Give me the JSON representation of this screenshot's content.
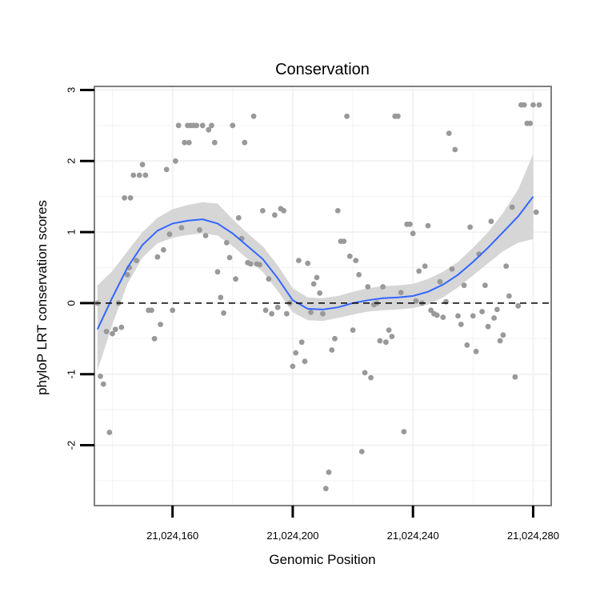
{
  "chart_data": {
    "type": "scatter",
    "title": "Conservation",
    "xlabel": "Genomic Position",
    "ylabel": "phyloP LRT conservation scores",
    "xlim": [
      21024134,
      21024286
    ],
    "ylim": [
      -2.85,
      3.05
    ],
    "xticks": [
      21024160,
      21024200,
      21024240,
      21024280
    ],
    "xtick_labels": [
      "21,024,160",
      "21,024,200",
      "21,024,240",
      "21,024,280"
    ],
    "yticks": [
      -2,
      -1,
      0,
      1,
      2,
      3
    ],
    "ytick_labels": [
      "-2",
      "-1",
      "0",
      "1",
      "2",
      "3"
    ],
    "reference_line": {
      "y": 0,
      "style": "dashed",
      "color": "#000000"
    },
    "colors": {
      "points": "#999999",
      "smooth": "#3366ff",
      "band": "#d4d4d4",
      "panel_border": "#7f7f7f",
      "grid": "#f2f2f2"
    },
    "points": [
      [
        21024135,
        0
      ],
      [
        21024136,
        -1.03
      ],
      [
        21024137,
        -1.14
      ],
      [
        21024138,
        -0.4
      ],
      [
        21024139,
        -1.82
      ],
      [
        21024140,
        -0.43
      ],
      [
        21024141,
        -0.37
      ],
      [
        21024142,
        0
      ],
      [
        21024143,
        -0.34
      ],
      [
        21024144,
        1.48
      ],
      [
        21024145,
        0.4
      ],
      [
        21024145.6,
        0.5
      ],
      [
        21024146,
        1.48
      ],
      [
        21024147,
        1.8
      ],
      [
        21024148,
        0.6
      ],
      [
        21024149,
        1.8
      ],
      [
        21024150,
        1.95
      ],
      [
        21024151,
        1.8
      ],
      [
        21024152,
        -0.1
      ],
      [
        21024153,
        -0.1
      ],
      [
        21024154,
        -0.5
      ],
      [
        21024155,
        0.65
      ],
      [
        21024156,
        -0.3
      ],
      [
        21024157,
        0.75
      ],
      [
        21024158,
        1.88
      ],
      [
        21024159,
        0.97
      ],
      [
        21024160,
        -0.1
      ],
      [
        21024161,
        2.0
      ],
      [
        21024162,
        2.5
      ],
      [
        21024163,
        1.06
      ],
      [
        21024164,
        2.26
      ],
      [
        21024165,
        2.5
      ],
      [
        21024165.5,
        2.26
      ],
      [
        21024166,
        2.5
      ],
      [
        21024167,
        2.5
      ],
      [
        21024168,
        2.5
      ],
      [
        21024169,
        1.03
      ],
      [
        21024170,
        2.5
      ],
      [
        21024171,
        0.95
      ],
      [
        21024172,
        2.44
      ],
      [
        21024173,
        2.5
      ],
      [
        21024174,
        2.26
      ],
      [
        21024175,
        0.44
      ],
      [
        21024176,
        0.08
      ],
      [
        21024177,
        -0.14
      ],
      [
        21024178,
        0.85
      ],
      [
        21024179,
        0.64
      ],
      [
        21024180,
        2.5
      ],
      [
        21024181,
        0.34
      ],
      [
        21024182,
        1.2
      ],
      [
        21024183,
        0.91
      ],
      [
        21024184,
        2.26
      ],
      [
        21024185,
        0.57
      ],
      [
        21024186,
        0.55
      ],
      [
        21024187,
        2.63
      ],
      [
        21024188,
        0.55
      ],
      [
        21024189,
        0.54
      ],
      [
        21024190,
        1.3
      ],
      [
        21024191,
        -0.1
      ],
      [
        21024192,
        0.34
      ],
      [
        21024193,
        -0.15
      ],
      [
        21024194,
        1.24
      ],
      [
        21024195,
        -0.06
      ],
      [
        21024196,
        1.33
      ],
      [
        21024197,
        1.3
      ],
      [
        21024198,
        -0.15
      ],
      [
        21024199,
        0
      ],
      [
        21024200,
        -0.89
      ],
      [
        21024201,
        -0.7
      ],
      [
        21024202,
        0.6
      ],
      [
        21024203,
        -0.55
      ],
      [
        21024204,
        -0.82
      ],
      [
        21024205,
        0.56
      ],
      [
        21024206,
        -0.13
      ],
      [
        21024207,
        0.27
      ],
      [
        21024208,
        0.36
      ],
      [
        21024209,
        0.14
      ],
      [
        21024210,
        -0.15
      ],
      [
        21024211,
        -2.61
      ],
      [
        21024212,
        -2.38
      ],
      [
        21024213,
        -0.66
      ],
      [
        21024214,
        -0.5
      ],
      [
        21024215,
        1.3
      ],
      [
        21024216,
        0.87
      ],
      [
        21024217,
        0.87
      ],
      [
        21024218,
        2.63
      ],
      [
        21024219,
        0.66
      ],
      [
        21024220,
        -0.38
      ],
      [
        21024221,
        0.6
      ],
      [
        21024222,
        0.4
      ],
      [
        21024223,
        -2.09
      ],
      [
        21024224,
        -0.98
      ],
      [
        21024225,
        0.23
      ],
      [
        21024226,
        -1.05
      ],
      [
        21024227,
        -0.02
      ],
      [
        21024228,
        0
      ],
      [
        21024229,
        -0.53
      ],
      [
        21024230,
        0.23
      ],
      [
        21024231,
        -0.55
      ],
      [
        21024232,
        -0.38
      ],
      [
        21024233,
        -0.47
      ],
      [
        21024234,
        2.63
      ],
      [
        21024235,
        2.63
      ],
      [
        21024236,
        0.15
      ],
      [
        21024237,
        -1.81
      ],
      [
        21024238,
        1.11
      ],
      [
        21024239,
        1.11
      ],
      [
        21024240,
        0.98
      ],
      [
        21024241,
        0.03
      ],
      [
        21024242,
        0.45
      ],
      [
        21024243,
        0
      ],
      [
        21024244,
        0.52
      ],
      [
        21024245,
        1.09
      ],
      [
        21024246,
        -0.1
      ],
      [
        21024247,
        -0.15
      ],
      [
        21024248,
        -0.17
      ],
      [
        21024249,
        0.3
      ],
      [
        21024250,
        -0.2
      ],
      [
        21024251,
        0.02
      ],
      [
        21024252,
        2.39
      ],
      [
        21024253,
        0.48
      ],
      [
        21024254,
        2.16
      ],
      [
        21024255,
        -0.18
      ],
      [
        21024256,
        -0.3
      ],
      [
        21024257,
        0.25
      ],
      [
        21024258,
        -0.59
      ],
      [
        21024259,
        1.07
      ],
      [
        21024260,
        -0.18
      ],
      [
        21024261,
        -0.68
      ],
      [
        21024262,
        0.69
      ],
      [
        21024263,
        -0.12
      ],
      [
        21024264,
        0.25
      ],
      [
        21024265,
        -0.33
      ],
      [
        21024266,
        1.15
      ],
      [
        21024267,
        -0.21
      ],
      [
        21024268,
        -0.09
      ],
      [
        21024269,
        -0.53
      ],
      [
        21024270,
        -0.45
      ],
      [
        21024271,
        0.52
      ],
      [
        21024272,
        0.1
      ],
      [
        21024273,
        1.35
      ],
      [
        21024274,
        -1.04
      ],
      [
        21024275,
        -0.04
      ],
      [
        21024276,
        2.79
      ],
      [
        21024277,
        2.79
      ],
      [
        21024278,
        2.53
      ],
      [
        21024279,
        2.53
      ],
      [
        21024280,
        2.79
      ],
      [
        21024281,
        1.28
      ],
      [
        21024282,
        2.79
      ]
    ],
    "smooth_fit": [
      [
        21024135,
        -0.37
      ],
      [
        21024140,
        0.08
      ],
      [
        21024145,
        0.5
      ],
      [
        21024150,
        0.82
      ],
      [
        21024155,
        1.02
      ],
      [
        21024160,
        1.12
      ],
      [
        21024165,
        1.16
      ],
      [
        21024170,
        1.18
      ],
      [
        21024175,
        1.12
      ],
      [
        21024180,
        0.98
      ],
      [
        21024185,
        0.8
      ],
      [
        21024190,
        0.62
      ],
      [
        21024195,
        0.35
      ],
      [
        21024200,
        0.04
      ],
      [
        21024205,
        -0.08
      ],
      [
        21024210,
        -0.09
      ],
      [
        21024215,
        -0.06
      ],
      [
        21024220,
        0
      ],
      [
        21024225,
        0.04
      ],
      [
        21024230,
        0.07
      ],
      [
        21024235,
        0.08
      ],
      [
        21024240,
        0.1
      ],
      [
        21024245,
        0.16
      ],
      [
        21024250,
        0.26
      ],
      [
        21024255,
        0.4
      ],
      [
        21024260,
        0.58
      ],
      [
        21024265,
        0.78
      ],
      [
        21024270,
        1.0
      ],
      [
        21024275,
        1.22
      ],
      [
        21024280,
        1.5
      ]
    ],
    "smooth_lower": [
      [
        21024135,
        -0.95
      ],
      [
        21024140,
        -0.3
      ],
      [
        21024145,
        0.27
      ],
      [
        21024150,
        0.64
      ],
      [
        21024155,
        0.84
      ],
      [
        21024160,
        0.92
      ],
      [
        21024165,
        0.96
      ],
      [
        21024170,
        0.98
      ],
      [
        21024175,
        0.95
      ],
      [
        21024180,
        0.8
      ],
      [
        21024185,
        0.62
      ],
      [
        21024190,
        0.44
      ],
      [
        21024195,
        0.17
      ],
      [
        21024200,
        -0.13
      ],
      [
        21024205,
        -0.24
      ],
      [
        21024210,
        -0.25
      ],
      [
        21024215,
        -0.21
      ],
      [
        21024220,
        -0.16
      ],
      [
        21024225,
        -0.12
      ],
      [
        21024230,
        -0.1
      ],
      [
        21024235,
        -0.09
      ],
      [
        21024240,
        -0.07
      ],
      [
        21024245,
        -0.02
      ],
      [
        21024250,
        0.08
      ],
      [
        21024255,
        0.22
      ],
      [
        21024260,
        0.39
      ],
      [
        21024265,
        0.56
      ],
      [
        21024270,
        0.73
      ],
      [
        21024275,
        0.85
      ],
      [
        21024280,
        0.9
      ]
    ],
    "smooth_upper": [
      [
        21024135,
        0.25
      ],
      [
        21024140,
        0.45
      ],
      [
        21024145,
        0.73
      ],
      [
        21024150,
        1.0
      ],
      [
        21024155,
        1.2
      ],
      [
        21024160,
        1.32
      ],
      [
        21024165,
        1.38
      ],
      [
        21024170,
        1.42
      ],
      [
        21024175,
        1.4
      ],
      [
        21024180,
        1.18
      ],
      [
        21024185,
        0.98
      ],
      [
        21024190,
        0.8
      ],
      [
        21024195,
        0.53
      ],
      [
        21024200,
        0.21
      ],
      [
        21024205,
        0.08
      ],
      [
        21024210,
        0.07
      ],
      [
        21024215,
        0.1
      ],
      [
        21024220,
        0.16
      ],
      [
        21024225,
        0.21
      ],
      [
        21024230,
        0.24
      ],
      [
        21024235,
        0.25
      ],
      [
        21024240,
        0.27
      ],
      [
        21024245,
        0.34
      ],
      [
        21024250,
        0.44
      ],
      [
        21024255,
        0.58
      ],
      [
        21024260,
        0.78
      ],
      [
        21024265,
        1.0
      ],
      [
        21024270,
        1.27
      ],
      [
        21024275,
        1.6
      ],
      [
        21024280,
        2.1
      ]
    ]
  }
}
